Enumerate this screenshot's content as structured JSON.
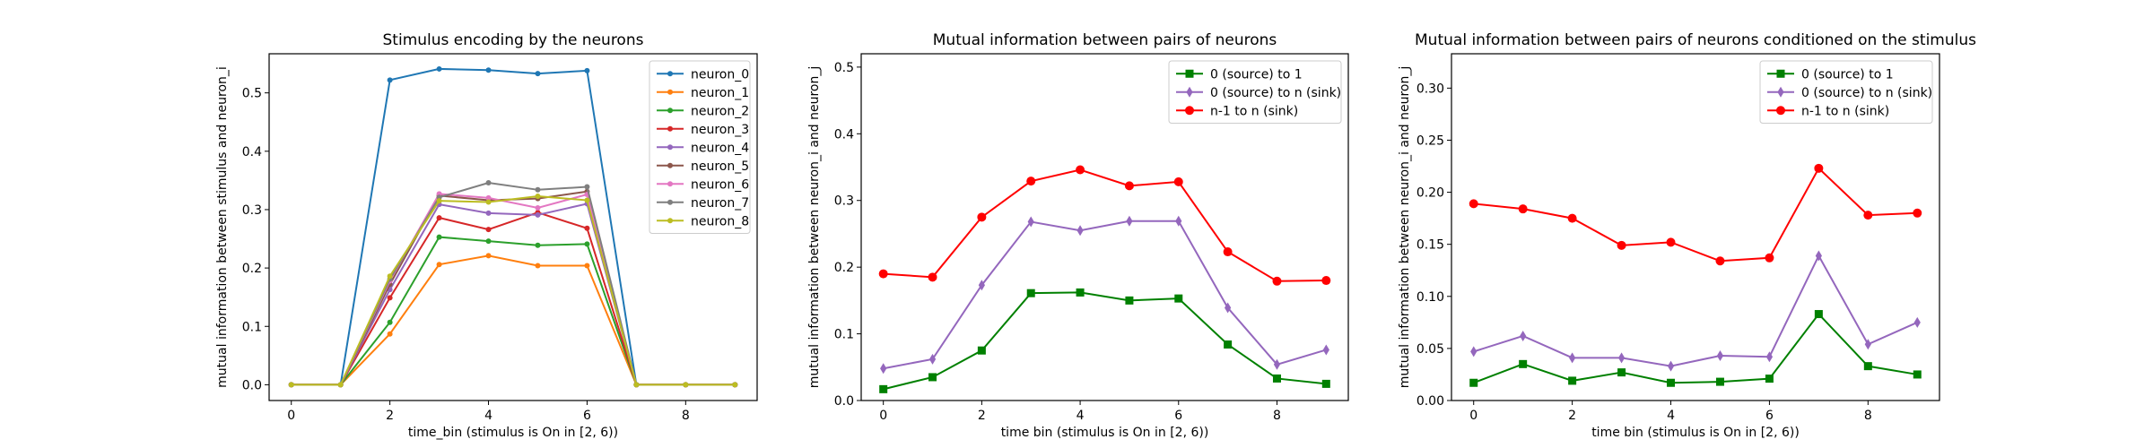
{
  "chart_data": [
    {
      "type": "line",
      "title": "Stimulus encoding by the neurons",
      "xlabel": "time_bin (stimulus is On in [2, 6))",
      "ylabel": "mutual information between stimulus and neuron_i",
      "xlim": [
        -0.45,
        9.45
      ],
      "ylim": [
        -0.027,
        0.567
      ],
      "xticks": [
        0,
        2,
        4,
        6,
        8
      ],
      "yticks": [
        0.0,
        0.1,
        0.2,
        0.3,
        0.4,
        0.5
      ],
      "ytick_labels": [
        "0.0",
        "0.1",
        "0.2",
        "0.3",
        "0.4",
        "0.5"
      ],
      "grid": false,
      "legend_position": "top-right",
      "x": [
        0,
        1,
        2,
        3,
        4,
        5,
        6,
        7,
        8,
        9
      ],
      "series": [
        {
          "name": "neuron_0",
          "color": "#1f77b4",
          "marker": "dot",
          "values": [
            0,
            0,
            0.522,
            0.541,
            0.539,
            0.533,
            0.538,
            0,
            0,
            0
          ]
        },
        {
          "name": "neuron_1",
          "color": "#ff7f0e",
          "marker": "dot",
          "values": [
            0,
            0,
            0.087,
            0.206,
            0.221,
            0.204,
            0.204,
            0,
            0,
            0
          ]
        },
        {
          "name": "neuron_2",
          "color": "#2ca02c",
          "marker": "dot",
          "values": [
            0,
            0,
            0.107,
            0.253,
            0.246,
            0.239,
            0.241,
            0,
            0,
            0
          ]
        },
        {
          "name": "neuron_3",
          "color": "#d62728",
          "marker": "dot",
          "values": [
            0,
            0,
            0.149,
            0.286,
            0.266,
            0.295,
            0.268,
            0,
            0,
            0
          ]
        },
        {
          "name": "neuron_4",
          "color": "#9467bd",
          "marker": "dot",
          "values": [
            0,
            0,
            0.163,
            0.309,
            0.294,
            0.291,
            0.31,
            0,
            0,
            0
          ]
        },
        {
          "name": "neuron_5",
          "color": "#8c564b",
          "marker": "dot",
          "values": [
            0,
            0,
            0.172,
            0.324,
            0.316,
            0.319,
            0.331,
            0,
            0,
            0
          ]
        },
        {
          "name": "neuron_6",
          "color": "#e377c2",
          "marker": "dot",
          "values": [
            0,
            0,
            0.178,
            0.327,
            0.32,
            0.303,
            0.326,
            0,
            0,
            0
          ]
        },
        {
          "name": "neuron_7",
          "color": "#7f7f7f",
          "marker": "dot",
          "values": [
            0,
            0,
            0.181,
            0.321,
            0.346,
            0.334,
            0.339,
            0,
            0,
            0
          ]
        },
        {
          "name": "neuron_8",
          "color": "#bcbd22",
          "marker": "dot",
          "values": [
            0,
            0,
            0.186,
            0.315,
            0.313,
            0.323,
            0.316,
            0,
            0,
            0
          ]
        }
      ]
    },
    {
      "type": "line",
      "title": "Mutual information between pairs of neurons",
      "xlabel": "time bin (stimulus is On in [2, 6))",
      "ylabel": "mutual information between neuron_i and neuron_j",
      "xlim": [
        -0.45,
        9.45
      ],
      "ylim": [
        0.0,
        0.52
      ],
      "xticks": [
        0,
        2,
        4,
        6,
        8
      ],
      "yticks": [
        0.0,
        0.1,
        0.2,
        0.3,
        0.4,
        0.5
      ],
      "ytick_labels": [
        "0.0",
        "0.1",
        "0.2",
        "0.3",
        "0.4",
        "0.5"
      ],
      "grid": false,
      "legend_position": "top-right",
      "x": [
        0,
        1,
        2,
        3,
        4,
        5,
        6,
        7,
        8,
        9
      ],
      "series": [
        {
          "name": "0 (source) to 1",
          "color": "#008000",
          "marker": "square",
          "values": [
            0.017,
            0.035,
            0.075,
            0.161,
            0.162,
            0.15,
            0.153,
            0.084,
            0.033,
            0.025
          ]
        },
        {
          "name": "0 (source) to n (sink)",
          "color": "#9467bd",
          "marker": "diamond",
          "values": [
            0.048,
            0.062,
            0.173,
            0.268,
            0.255,
            0.269,
            0.269,
            0.139,
            0.054,
            0.076
          ]
        },
        {
          "name": "n-1 to n (sink)",
          "color": "#ff0000",
          "marker": "circle",
          "values": [
            0.19,
            0.185,
            0.275,
            0.329,
            0.346,
            0.322,
            0.328,
            0.223,
            0.179,
            0.18
          ]
        }
      ]
    },
    {
      "type": "line",
      "title": "Mutual information between pairs of neurons conditioned on the stimulus",
      "xlabel": "time bin (stimulus is On in [2, 6))",
      "ylabel": "mutual information between neuron_i and neuron_j",
      "xlim": [
        -0.45,
        9.45
      ],
      "ylim": [
        0.0,
        0.333
      ],
      "xticks": [
        0,
        2,
        4,
        6,
        8
      ],
      "yticks": [
        0.0,
        0.05,
        0.1,
        0.15,
        0.2,
        0.25,
        0.3
      ],
      "ytick_labels": [
        "0.00",
        "0.05",
        "0.10",
        "0.15",
        "0.20",
        "0.25",
        "0.30"
      ],
      "grid": false,
      "legend_position": "top-right",
      "x": [
        0,
        1,
        2,
        3,
        4,
        5,
        6,
        7,
        8,
        9
      ],
      "series": [
        {
          "name": "0 (source) to 1",
          "color": "#008000",
          "marker": "square",
          "values": [
            0.017,
            0.035,
            0.019,
            0.027,
            0.017,
            0.018,
            0.021,
            0.083,
            0.033,
            0.025
          ]
        },
        {
          "name": "0 (source) to n (sink)",
          "color": "#9467bd",
          "marker": "diamond",
          "values": [
            0.047,
            0.062,
            0.041,
            0.041,
            0.033,
            0.043,
            0.042,
            0.139,
            0.054,
            0.075
          ]
        },
        {
          "name": "n-1 to n (sink)",
          "color": "#ff0000",
          "marker": "circle",
          "values": [
            0.189,
            0.184,
            0.175,
            0.149,
            0.152,
            0.134,
            0.137,
            0.223,
            0.178,
            0.18
          ]
        }
      ]
    }
  ]
}
